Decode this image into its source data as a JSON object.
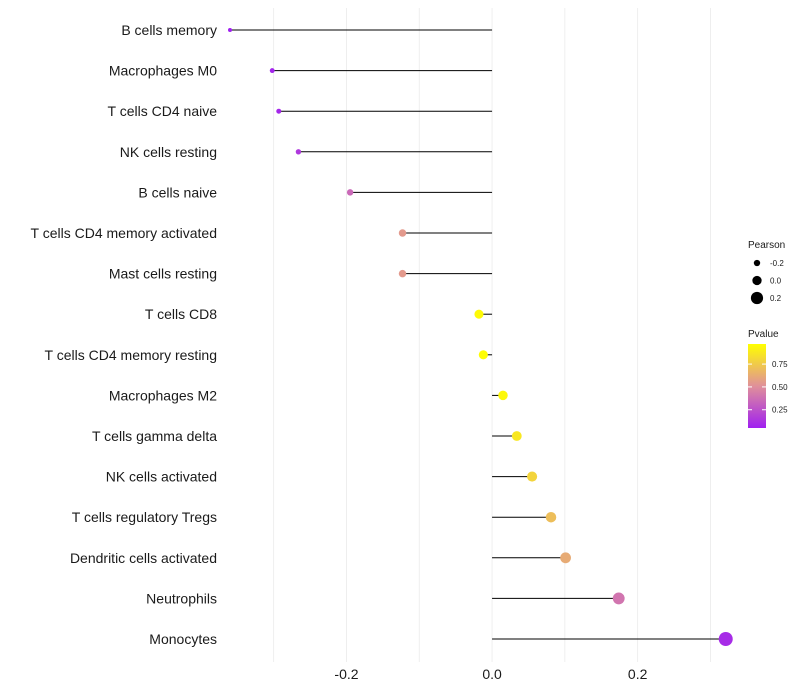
{
  "chart_data": {
    "type": "lollipop",
    "title": "",
    "xlabel": "",
    "ylabel": "",
    "xlim": [
      -0.36,
      0.32
    ],
    "x_ticks": [
      -0.2,
      0.0,
      0.2
    ],
    "x_tick_labels": [
      "-0.2",
      "0.0",
      "0.2"
    ],
    "grid": true,
    "categories": [
      "B cells memory",
      "Macrophages M0",
      "T cells CD4 naive",
      "NK cells resting",
      "B cells naive",
      "T cells CD4 memory activated",
      "Mast cells resting",
      "T cells CD8",
      "T cells CD4 memory resting",
      "Macrophages M2",
      "T cells gamma delta",
      "NK cells activated",
      "T cells regulatory  Tregs",
      "Dendritic cells activated",
      "Neutrophils",
      "Monocytes"
    ],
    "pearson": [
      -0.36,
      -0.302,
      -0.293,
      -0.266,
      -0.195,
      -0.123,
      -0.123,
      -0.018,
      -0.012,
      0.015,
      0.034,
      0.055,
      0.081,
      0.101,
      0.174,
      0.321
    ],
    "pvalue": [
      0.05,
      0.07,
      0.08,
      0.15,
      0.35,
      0.55,
      0.55,
      0.95,
      0.96,
      0.94,
      0.87,
      0.79,
      0.7,
      0.62,
      0.4,
      0.1
    ],
    "legend": {
      "position": "right",
      "size_title": "Pearson",
      "size_breaks": [
        -0.2,
        0.0,
        0.2
      ],
      "size_labels": [
        "-0.2",
        "0.0",
        "0.2"
      ],
      "color_title": "Pvalue",
      "color_breaks": [
        0.75,
        0.5,
        0.25
      ],
      "color_labels": [
        "0.75",
        "0.50",
        "0.25"
      ],
      "color_range": [
        0.05,
        0.97
      ]
    },
    "colors": {
      "low": "#a020f0",
      "mid": "#e0909a",
      "high": "#ffff00",
      "stem": "#000000",
      "grid": "#ebebeb"
    }
  }
}
